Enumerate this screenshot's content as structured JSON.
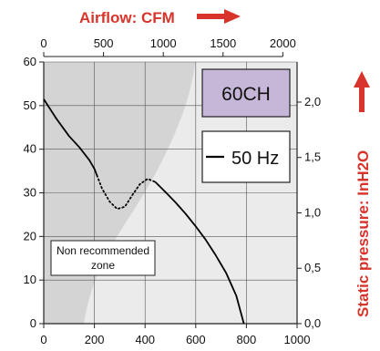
{
  "chart_data": {
    "type": "line",
    "model_label": "60CH",
    "legend_label": "50 Hz",
    "zone_label_line1": "Non recommended",
    "zone_label_line2": "zone",
    "top_axis": {
      "title": "Airflow: CFM",
      "ticks": [
        "0",
        "500",
        "1000",
        "1500",
        "2000"
      ],
      "tick_values": [
        0,
        500,
        1000,
        1500,
        2000
      ]
    },
    "bottom_axis": {
      "title": "",
      "ticks": [
        "0",
        "200",
        "400",
        "600",
        "800",
        "1000"
      ],
      "tick_values": [
        0,
        200,
        400,
        600,
        800,
        1000
      ],
      "range": [
        0,
        1000
      ]
    },
    "left_axis": {
      "title": "",
      "ticks": [
        "0",
        "10",
        "20",
        "30",
        "40",
        "50",
        "60"
      ],
      "tick_values": [
        0,
        10,
        20,
        30,
        40,
        50,
        60
      ],
      "range": [
        0,
        60
      ]
    },
    "right_axis": {
      "title": "Static pressure: InH2O",
      "ticks": [
        "0,0",
        "0,5",
        "1,0",
        "1,5",
        "2,0"
      ],
      "tick_values": [
        0,
        0.5,
        1.0,
        1.5,
        2.0
      ],
      "range": [
        0,
        2.362
      ]
    },
    "grid": true,
    "colors": {
      "accent_red": "#d9342b",
      "model_box": "#c6b6d8",
      "zone_fill": "#d4d4d4",
      "plot_fill": "#ebebeb",
      "curve": "#000000"
    },
    "series": [
      {
        "style": "solid",
        "x": [
          0,
          50,
          100,
          140,
          180,
          200,
          210
        ],
        "y": [
          51.5,
          47,
          43,
          40.5,
          37.5,
          35.5,
          34
        ]
      },
      {
        "style": "dotted",
        "x": [
          210,
          230,
          260,
          290,
          320,
          350,
          380,
          410,
          440
        ],
        "y": [
          34,
          31,
          28,
          26.3,
          26.8,
          29.5,
          32,
          33.2,
          32.5
        ]
      },
      {
        "style": "solid",
        "x": [
          440,
          480,
          520,
          560,
          600,
          640,
          680,
          720,
          760,
          790
        ],
        "y": [
          32.5,
          30.2,
          27.8,
          25.2,
          22.3,
          19.2,
          15.6,
          11.6,
          6.4,
          0
        ]
      }
    ]
  }
}
